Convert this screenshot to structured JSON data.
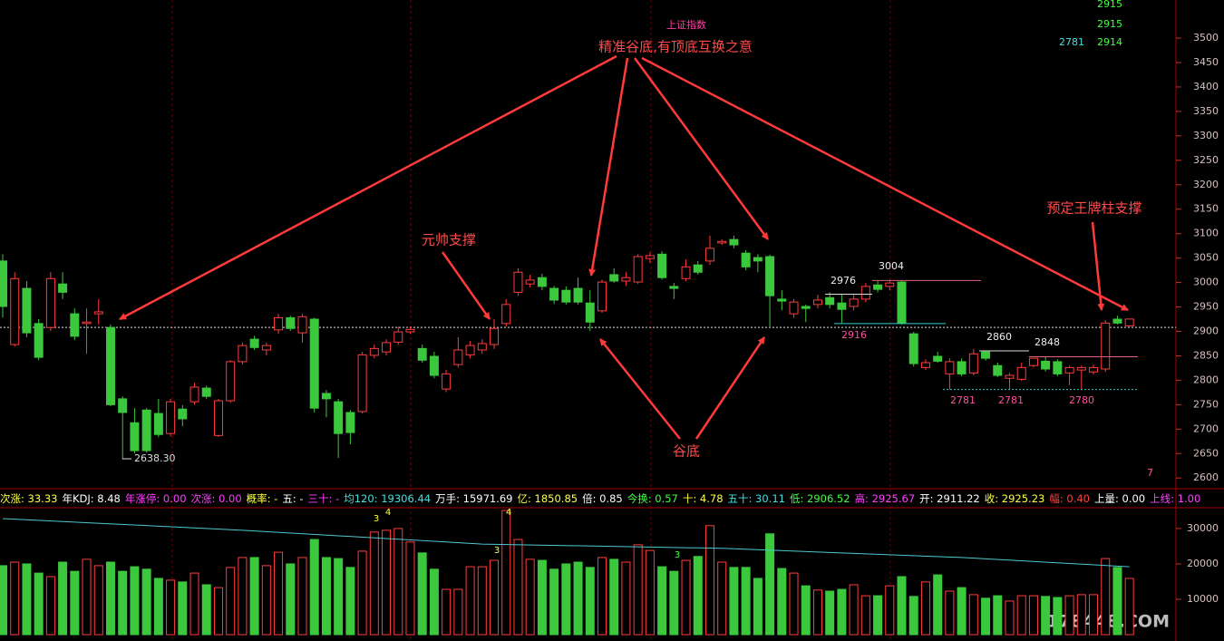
{
  "chart_data": [
    {
      "type": "candlestick",
      "title": "上证指数",
      "open": [
        3044,
        2873,
        2988,
        2916,
        2908,
        2997,
        2936,
        2916,
        2936,
        2908,
        2762,
        2713,
        2739,
        2732,
        2691,
        2741,
        2756,
        2784,
        2687,
        2758,
        2838,
        2884,
        2862,
        2903,
        2928,
        2897,
        2925,
        2773,
        2756,
        2734,
        2736,
        2851,
        2858,
        2878,
        2899,
        2865,
        2849,
        2782,
        2832,
        2852,
        2862,
        2873,
        2916,
        2980,
        2997,
        3010,
        2988,
        2984,
        2988,
        2958,
        2942,
        3016,
        3003,
        3001,
        3049,
        3058,
        2992,
        3008,
        3036,
        3044,
        3081,
        3088,
        3060,
        3051,
        3053,
        2966,
        2936,
        2951,
        2955,
        2969,
        2958,
        2951,
        2966,
        2995,
        2992,
        3001,
        2895,
        2826,
        2849,
        2813,
        2838,
        2815,
        2858,
        2830,
        2804,
        2802,
        2830,
        2839,
        2838,
        2815,
        2821,
        2817,
        2823,
        2925,
        2911.22
      ],
      "high": [
        3058,
        3021,
        3003,
        2925,
        3021,
        3021,
        2947,
        2947,
        2966,
        2914,
        2767,
        2743,
        2743,
        2762,
        2762,
        2749,
        2795,
        2789,
        2762,
        2841,
        2877,
        2891,
        2877,
        2936,
        2932,
        2936,
        2928,
        2780,
        2762,
        2739,
        2858,
        2873,
        2884,
        2910,
        2910,
        2873,
        2858,
        2821,
        2888,
        2880,
        2884,
        2925,
        2966,
        3029,
        3016,
        3018,
        2993,
        2992,
        3010,
        2984,
        3006,
        3029,
        3021,
        3058,
        3062,
        3064,
        2999,
        3047,
        3044,
        3096,
        3088,
        3096,
        3066,
        3058,
        3057,
        2984,
        2966,
        2955,
        2975,
        2980,
        2976,
        2975,
        2999,
        3003,
        3005,
        3004,
        2899,
        2843,
        2858,
        2845,
        2845,
        2864,
        2860,
        2836,
        2815,
        2836,
        2846,
        2848,
        2843,
        2830,
        2830,
        2832,
        2923,
        2932,
        2925.67
      ],
      "low": [
        2928,
        2869,
        2888,
        2841,
        2901,
        2966,
        2882,
        2854,
        2914,
        2747,
        2638.3,
        2650,
        2652,
        2684,
        2685,
        2706,
        2750,
        2762,
        2684,
        2754,
        2832,
        2862,
        2851,
        2895,
        2901,
        2877,
        2734,
        2724,
        2641,
        2669,
        2732,
        2845,
        2851,
        2873,
        2895,
        2836,
        2804,
        2776,
        2826,
        2845,
        2854,
        2864,
        2910,
        2973,
        2990,
        2984,
        2956,
        2955,
        2955,
        2901,
        2938,
        2999,
        2993,
        2997,
        3040,
        3006,
        2966,
        3003,
        3016,
        3036,
        3077,
        3070,
        3025,
        3021,
        2910,
        2943,
        2928,
        2919,
        2947,
        2947,
        2916,
        2943,
        2960,
        2980,
        2984,
        2914,
        2828,
        2821,
        2836,
        2781,
        2808,
        2810,
        2840,
        2806,
        2781,
        2799,
        2826,
        2818,
        2808,
        2790,
        2780,
        2812,
        2817,
        2914,
        2906.52
      ],
      "close": [
        2951,
        3008,
        2897,
        2847,
        3008,
        2980,
        2890,
        2919,
        2940,
        2750,
        2734,
        2656,
        2656,
        2689,
        2756,
        2721,
        2786,
        2767,
        2758,
        2838,
        2871,
        2867,
        2871,
        2928,
        2906,
        2930,
        2743,
        2762,
        2691,
        2693,
        2852,
        2865,
        2877,
        2899,
        2904,
        2841,
        2810,
        2813,
        2862,
        2871,
        2875,
        2906,
        2955,
        3021,
        3005,
        2992,
        2964,
        2960,
        2960,
        2919,
        3001,
        3003,
        3010,
        3053,
        3055,
        3010,
        2988,
        3032,
        3021,
        3070,
        3084,
        3077,
        3032,
        3044,
        2973,
        2962,
        2960,
        2947,
        2964,
        2955,
        2945,
        2966,
        2992,
        2986,
        2999,
        2917,
        2834,
        2836,
        2839,
        2838,
        2813,
        2854,
        2845,
        2810,
        2810,
        2826,
        2845,
        2823,
        2813,
        2826,
        2826,
        2826,
        2917,
        2917,
        2925.23
      ],
      "up_color": "#ff3c3c",
      "down_color": "#3cc83c",
      "ylim": [
        2580,
        3578
      ],
      "yticks": [
        2600,
        2650,
        2700,
        2750,
        2800,
        2850,
        2900,
        2950,
        3000,
        3050,
        3100,
        3150,
        3200,
        3250,
        3300,
        3350,
        3400,
        3450,
        3500
      ],
      "reference_line": 2908,
      "levels": [
        2976,
        3004,
        2916,
        2860,
        2848,
        2781,
        2781,
        2780,
        {
          "value": 2638.3,
          "label": "2638.30"
        }
      ],
      "side_values": [
        2915,
        2915,
        2781,
        2914,
        7
      ]
    },
    {
      "type": "bar",
      "values": [
        19500,
        20500,
        20000,
        17400,
        16400,
        20500,
        17900,
        21300,
        19500,
        20500,
        17900,
        19200,
        18500,
        15900,
        15400,
        14900,
        17400,
        14100,
        13300,
        19000,
        21800,
        21800,
        19500,
        23300,
        20000,
        21800,
        26900,
        21800,
        21500,
        19000,
        23600,
        29000,
        29500,
        30000,
        26200,
        23100,
        18500,
        12800,
        12800,
        19200,
        19200,
        21000,
        35100,
        26900,
        21300,
        21000,
        18500,
        20000,
        20500,
        19000,
        21800,
        21300,
        20500,
        25400,
        23800,
        19200,
        17900,
        21000,
        22100,
        30800,
        20500,
        19000,
        19000,
        15900,
        28500,
        18700,
        17400,
        13800,
        12600,
        12300,
        12800,
        14100,
        11000,
        11000,
        13800,
        16400,
        10800,
        14900,
        16900,
        12300,
        13300,
        11300,
        10300,
        11000,
        9500,
        11000,
        11000,
        10800,
        10500,
        11000,
        11300,
        11300,
        21500,
        19000,
        15900
      ],
      "ma_x": [
        0,
        20,
        40,
        60,
        80,
        94
      ],
      "ma_values": [
        32800,
        29500,
        25600,
        24400,
        21800,
        19200
      ],
      "ma_color": "#4cc8d0",
      "ylim": [
        0,
        41000
      ],
      "yticks": [
        10000,
        20000,
        30000
      ],
      "notes": [
        3,
        4,
        3,
        4,
        3
      ]
    }
  ],
  "annotations": [
    "精准谷底,有顶底互换之意",
    "元帅支撑",
    "谷底",
    "预定王牌柱支撑"
  ],
  "indicators": [
    {
      "text": "次涨: 33.33",
      "color": "#ffff40"
    },
    {
      "text": "年KDJ: 8.48",
      "color": "#ffffff"
    },
    {
      "text": "年涨停: 0.00",
      "color": "#ff40ff"
    },
    {
      "text": "次涨: 0.00",
      "color": "#ff40ff"
    },
    {
      "text": "概率: -",
      "color": "#ffff40"
    },
    {
      "text": "五: -",
      "color": "#ffffff"
    },
    {
      "text": "三十: -",
      "color": "#ff40ff"
    },
    {
      "text": "均120: 19306.44",
      "color": "#40e0e0"
    },
    {
      "text": "万手: 15971.69",
      "color": "#ffffff"
    },
    {
      "text": "亿: 1850.85",
      "color": "#ffff40"
    },
    {
      "text": "倍: 0.85",
      "color": "#ffffff"
    },
    {
      "text": "今换: 0.57",
      "color": "#40ff40"
    },
    {
      "text": "十: 4.78",
      "color": "#ffff40"
    },
    {
      "text": "五十: 30.11",
      "color": "#40e0e0"
    },
    {
      "text": "低: 2906.52",
      "color": "#40ff40"
    },
    {
      "text": "高: 2925.67",
      "color": "#ff40ff"
    },
    {
      "text": "开: 2911.22",
      "color": "#ffffff"
    },
    {
      "text": "收: 2925.23",
      "color": "#ffff40"
    },
    {
      "text": "幅: 0.40",
      "color": "#ff4040"
    },
    {
      "text": "上量: 0.00",
      "color": "#ffffff"
    },
    {
      "text": "上线: 1.00",
      "color": "#ff40ff"
    }
  ],
  "watermark": "178448.COM"
}
